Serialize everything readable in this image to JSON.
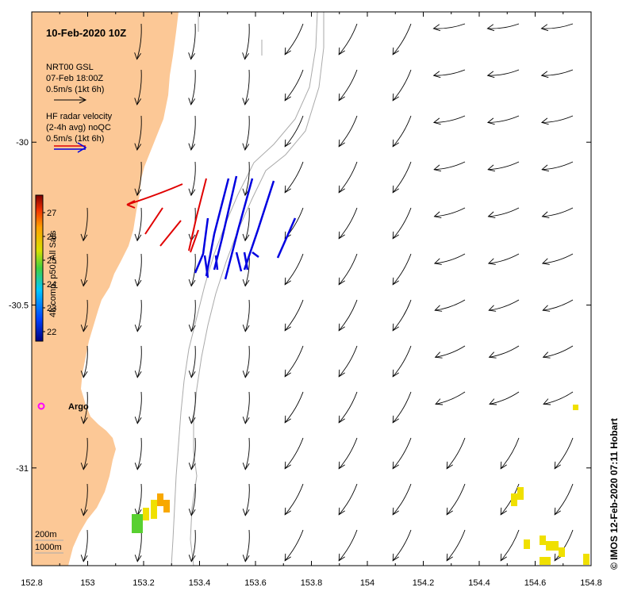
{
  "map": {
    "title": "10-Feb-2020 10Z",
    "credit": "© IMOS 12-Feb-2020 07:11 Hobart",
    "lon_ticks": [
      "152.8",
      "153",
      "153.2",
      "153.4",
      "153.6",
      "153.8",
      "154",
      "154.2",
      "154.4",
      "154.6",
      "154.8"
    ],
    "lat_ticks": [
      "-30",
      "-30.5",
      "-31"
    ],
    "lon_range": [
      152.8,
      154.8
    ],
    "lat_range": [
      -31.3,
      -29.6
    ]
  },
  "legend": {
    "model_name": "NRT00 GSL",
    "model_time": "07-Feb 18:00Z",
    "model_scale": "0.5m/s (1kt 6h)",
    "radar_title": "HF radar velocity",
    "radar_subtitle": "(2-4h avg) noQC",
    "radar_scale": "0.5m/s (1kt 6h)",
    "colorbar_label": "4h comp, p50, All Sats",
    "colorbar_ticks": [
      "27",
      "26",
      "25",
      "24",
      "23",
      "22"
    ],
    "contour_200": "200m",
    "contour_1000": "1000m",
    "argo_label": "Argo"
  },
  "colors": {
    "land": "#fcc896",
    "radar_red": "#e00000",
    "radar_blue": "#0000e0",
    "argo": "#ff00ff",
    "sst_yellow": "#f0e000",
    "sst_orange": "#f8a800",
    "sst_green": "#58d030"
  }
}
